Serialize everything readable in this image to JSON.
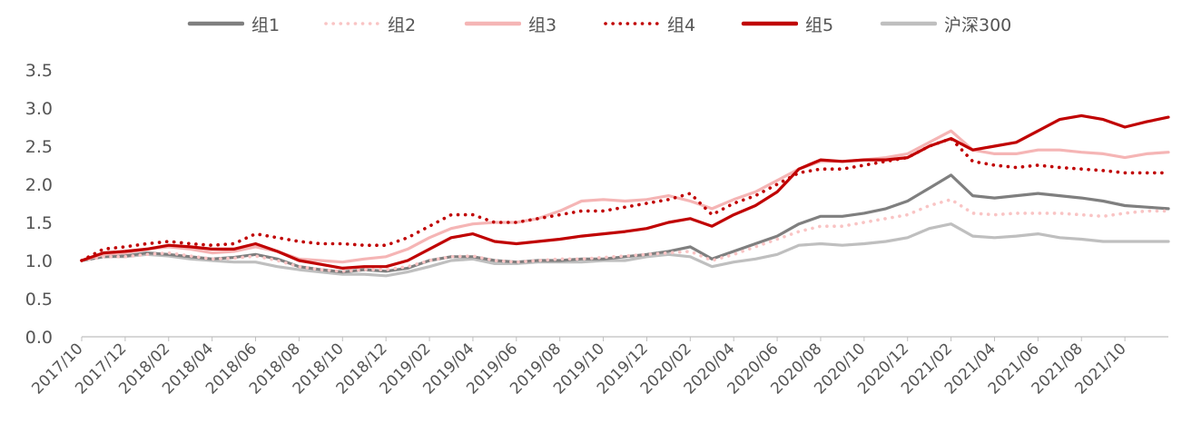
{
  "chart_data": {
    "type": "line",
    "title": "",
    "xlabel": "",
    "ylabel": "",
    "ylim": [
      0,
      3.5
    ],
    "yticks": [
      "0.0",
      "0.5",
      "1.0",
      "1.5",
      "2.0",
      "2.5",
      "3.0",
      "3.5"
    ],
    "x_tick_labels": [
      "2017/10",
      "2017/12",
      "2018/02",
      "2018/04",
      "2018/06",
      "2018/08",
      "2018/10",
      "2018/12",
      "2019/02",
      "2019/04",
      "2019/06",
      "2019/08",
      "2019/10",
      "2019/12",
      "2020/02",
      "2020/04",
      "2020/06",
      "2020/08",
      "2020/10",
      "2020/12",
      "2021/02",
      "2021/04",
      "2021/06",
      "2021/08",
      "2021/10"
    ],
    "x": [
      "2017/10",
      "2017/11",
      "2017/12",
      "2018/01",
      "2018/02",
      "2018/03",
      "2018/04",
      "2018/05",
      "2018/06",
      "2018/07",
      "2018/08",
      "2018/09",
      "2018/10",
      "2018/11",
      "2018/12",
      "2019/01",
      "2019/02",
      "2019/03",
      "2019/04",
      "2019/05",
      "2019/06",
      "2019/07",
      "2019/08",
      "2019/09",
      "2019/10",
      "2019/11",
      "2019/12",
      "2020/01",
      "2020/02",
      "2020/03",
      "2020/04",
      "2020/05",
      "2020/06",
      "2020/07",
      "2020/08",
      "2020/09",
      "2020/10",
      "2020/11",
      "2020/12",
      "2021/01",
      "2021/02",
      "2021/03",
      "2021/04",
      "2021/05",
      "2021/06",
      "2021/07",
      "2021/08",
      "2021/09",
      "2021/10",
      "2021/11",
      "2021/12"
    ],
    "legend_position": "top",
    "grid": false,
    "series": [
      {
        "name": "组1",
        "color": "#7f7f7f",
        "style": "solid",
        "values": [
          1.0,
          1.05,
          1.06,
          1.1,
          1.08,
          1.05,
          1.02,
          1.04,
          1.08,
          1.02,
          0.92,
          0.88,
          0.85,
          0.88,
          0.86,
          0.9,
          1.0,
          1.05,
          1.05,
          1.0,
          0.98,
          1.0,
          1.0,
          1.02,
          1.02,
          1.05,
          1.08,
          1.12,
          1.18,
          1.02,
          1.12,
          1.22,
          1.32,
          1.48,
          1.58,
          1.58,
          1.62,
          1.68,
          1.78,
          1.95,
          2.12,
          1.85,
          1.82,
          1.85,
          1.88,
          1.85,
          1.82,
          1.78,
          1.72,
          1.7,
          1.68
        ]
      },
      {
        "name": "组2",
        "color": "#f9c4c4",
        "style": "dotted",
        "values": [
          1.0,
          1.05,
          1.05,
          1.08,
          1.1,
          1.06,
          1.02,
          1.03,
          1.06,
          1.0,
          0.92,
          0.88,
          0.86,
          0.88,
          0.88,
          0.92,
          1.0,
          1.05,
          1.06,
          1.0,
          0.98,
          1.0,
          1.02,
          1.02,
          1.04,
          1.06,
          1.08,
          1.1,
          1.12,
          1.0,
          1.08,
          1.18,
          1.28,
          1.38,
          1.45,
          1.45,
          1.5,
          1.55,
          1.6,
          1.72,
          1.8,
          1.62,
          1.6,
          1.62,
          1.62,
          1.62,
          1.6,
          1.58,
          1.62,
          1.65,
          1.65
        ]
      },
      {
        "name": "组3",
        "color": "#f5b5b5",
        "style": "solid",
        "values": [
          1.0,
          1.08,
          1.1,
          1.15,
          1.18,
          1.15,
          1.1,
          1.12,
          1.18,
          1.12,
          1.02,
          1.0,
          0.98,
          1.02,
          1.05,
          1.15,
          1.3,
          1.42,
          1.48,
          1.5,
          1.5,
          1.55,
          1.65,
          1.78,
          1.8,
          1.78,
          1.8,
          1.85,
          1.78,
          1.68,
          1.8,
          1.9,
          2.05,
          2.2,
          2.3,
          2.3,
          2.32,
          2.35,
          2.4,
          2.55,
          2.7,
          2.45,
          2.4,
          2.4,
          2.45,
          2.45,
          2.42,
          2.4,
          2.35,
          2.4,
          2.42
        ]
      },
      {
        "name": "组4",
        "color": "#c00000",
        "style": "dotted",
        "values": [
          1.0,
          1.15,
          1.18,
          1.22,
          1.25,
          1.22,
          1.2,
          1.22,
          1.35,
          1.3,
          1.25,
          1.22,
          1.22,
          1.2,
          1.2,
          1.3,
          1.45,
          1.6,
          1.6,
          1.5,
          1.5,
          1.55,
          1.6,
          1.65,
          1.65,
          1.7,
          1.75,
          1.8,
          1.88,
          1.6,
          1.75,
          1.85,
          2.0,
          2.15,
          2.2,
          2.2,
          2.25,
          2.3,
          2.35,
          2.5,
          2.6,
          2.3,
          2.25,
          2.22,
          2.25,
          2.22,
          2.2,
          2.18,
          2.15,
          2.15,
          2.15
        ]
      },
      {
        "name": "组5",
        "color": "#c00000",
        "style": "solid",
        "values": [
          1.0,
          1.1,
          1.12,
          1.15,
          1.2,
          1.18,
          1.15,
          1.15,
          1.22,
          1.12,
          1.0,
          0.95,
          0.9,
          0.92,
          0.92,
          1.0,
          1.15,
          1.3,
          1.35,
          1.25,
          1.22,
          1.25,
          1.28,
          1.32,
          1.35,
          1.38,
          1.42,
          1.5,
          1.55,
          1.45,
          1.6,
          1.72,
          1.9,
          2.2,
          2.32,
          2.3,
          2.32,
          2.32,
          2.35,
          2.5,
          2.6,
          2.45,
          2.5,
          2.55,
          2.7,
          2.85,
          2.9,
          2.85,
          2.75,
          2.82,
          2.88
        ]
      },
      {
        "name": "沪深300",
        "color": "#bfbfbf",
        "style": "solid",
        "values": [
          1.0,
          1.05,
          1.05,
          1.08,
          1.06,
          1.02,
          1.0,
          0.98,
          0.98,
          0.92,
          0.88,
          0.85,
          0.82,
          0.82,
          0.8,
          0.85,
          0.92,
          1.0,
          1.02,
          0.96,
          0.96,
          0.98,
          0.98,
          0.98,
          1.0,
          1.0,
          1.05,
          1.08,
          1.05,
          0.92,
          0.98,
          1.02,
          1.08,
          1.2,
          1.22,
          1.2,
          1.22,
          1.25,
          1.3,
          1.42,
          1.48,
          1.32,
          1.3,
          1.32,
          1.35,
          1.3,
          1.28,
          1.25,
          1.25,
          1.25,
          1.25
        ]
      }
    ]
  }
}
